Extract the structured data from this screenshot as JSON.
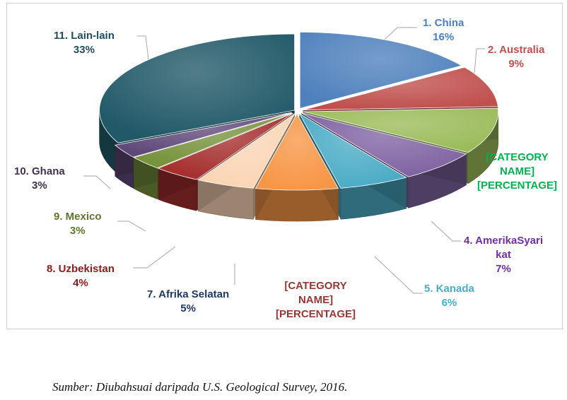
{
  "chart_data": {
    "type": "pie",
    "variant": "3d-exploded-slices",
    "slices": [
      {
        "label": "1. China",
        "value_text": "16%",
        "value": 16,
        "color": "#4f81bd",
        "label_color": "#4a7ebf"
      },
      {
        "label": "2. Australia",
        "value_text": "9%",
        "value": 9,
        "color": "#c0504d",
        "label_color": "#c0504d"
      },
      {
        "label": "[CATEGORY NAME]",
        "value_text": "[PERCENTAGE]",
        "value": 10,
        "color": "#9bbb59",
        "label_color": "#00b050"
      },
      {
        "label": "4. AmerikaSyarikat",
        "value_text": "7%",
        "value": 7,
        "color": "#8064a2",
        "label_color": "#7030a0"
      },
      {
        "label": "5. Kanada",
        "value_text": "6%",
        "value": 6,
        "color": "#4bacc6",
        "label_color": "#4bacc6"
      },
      {
        "label": "[CATEGORY NAME]",
        "value_text": "[PERCENTAGE]",
        "value": 7,
        "color": "#f79646",
        "label_color": "#953735"
      },
      {
        "label": "7. Afrika Selatan",
        "value_text": "5%",
        "value": 5,
        "color": "#fbd5b5",
        "label_color": "#1f3864"
      },
      {
        "label": "8. Uzbekistan",
        "value_text": "4%",
        "value": 4,
        "color": "#a5302e",
        "label_color": "#8b1a1a"
      },
      {
        "label": "9. Mexico",
        "value_text": "3%",
        "value": 3,
        "color": "#77933c",
        "label_color": "#5f7530"
      },
      {
        "label": "10. Ghana",
        "value_text": "3%",
        "value": 3,
        "color": "#5f497a",
        "label_color": "#3f3151"
      },
      {
        "label": "11. Lain-lain",
        "value_text": "33%",
        "value": 33,
        "color": "#215968",
        "label_color": "#1f4e5a"
      }
    ],
    "label_lines": {
      "china": [
        "1. China",
        "16%"
      ],
      "australia": [
        "2. Australia",
        "9%"
      ],
      "cat3": [
        "[CATEGORY",
        "NAME]",
        "[PERCENTAGE]"
      ],
      "amerika": [
        "4. AmerikaSyari",
        "kat",
        "7%"
      ],
      "kanada": [
        "5. Kanada",
        "6%"
      ],
      "cat6": [
        "[CATEGORY",
        "NAME]",
        "[PERCENTAGE]"
      ],
      "afrika": [
        "7. Afrika Selatan",
        "5%"
      ],
      "uzbek": [
        "8. Uzbekistan",
        "4%"
      ],
      "mexico": [
        "9. Mexico",
        "3%"
      ],
      "ghana": [
        "10. Ghana",
        "3%"
      ],
      "lain": [
        "11. Lain-lain",
        "33%"
      ]
    }
  },
  "footer": {
    "source": "Sumber: Diubahsuai daripada U.S. Geological Survey, 2016."
  }
}
